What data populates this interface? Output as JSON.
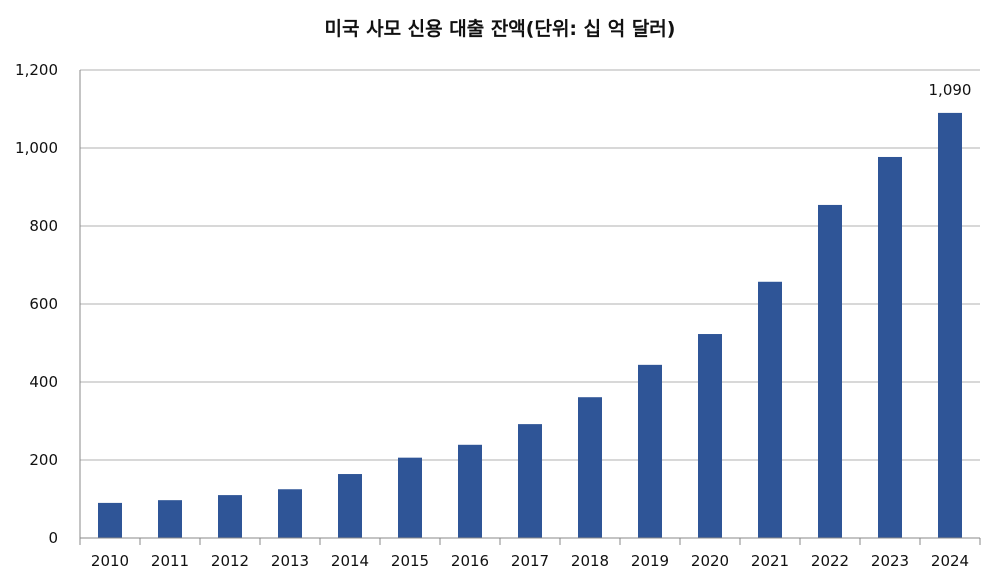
{
  "chart_data": {
    "type": "bar",
    "title": "미국 사모 신용 대출 잔액(단위: 십 억 달러)",
    "categories": [
      "2010",
      "2011",
      "2012",
      "2013",
      "2014",
      "2015",
      "2016",
      "2017",
      "2018",
      "2019",
      "2020",
      "2021",
      "2022",
      "2023",
      "2024"
    ],
    "values": [
      90,
      97,
      110,
      125,
      164,
      206,
      239,
      292,
      361,
      444,
      523,
      657,
      854,
      977,
      1090
    ],
    "ylim": [
      0,
      1200
    ],
    "yticks": [
      0,
      200,
      400,
      600,
      800,
      1000,
      1200
    ],
    "ytick_labels": [
      "0",
      "200",
      "400",
      "600",
      "800",
      "1,000",
      "1,200"
    ],
    "data_labels": [
      {
        "index": 14,
        "text": "1,090"
      }
    ],
    "bar_color": "#2F5597",
    "grid": true,
    "xlabel": "",
    "ylabel": ""
  }
}
